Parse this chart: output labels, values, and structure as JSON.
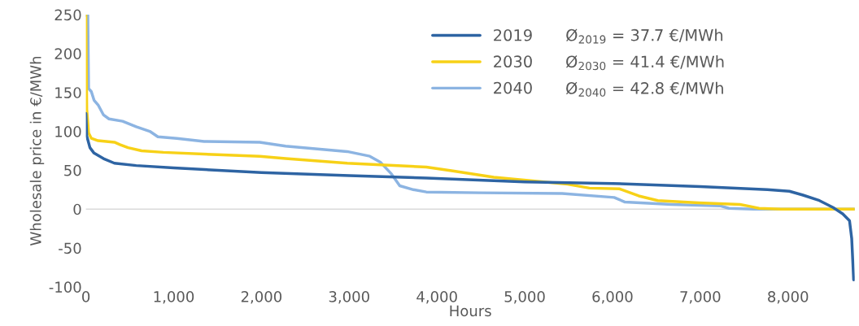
{
  "chart_data": {
    "type": "line",
    "xlabel": "Hours",
    "ylabel": "Wholesale price in €/MWh",
    "xlim": [
      0,
      8760
    ],
    "xticks": [
      {
        "value": 0,
        "label": "0"
      },
      {
        "value": 1000,
        "label": "1,000"
      },
      {
        "value": 2000,
        "label": "2,000"
      },
      {
        "value": 3000,
        "label": "3,000"
      },
      {
        "value": 4000,
        "label": "4,000"
      },
      {
        "value": 5000,
        "label": "5,000"
      },
      {
        "value": 6000,
        "label": "6,000"
      },
      {
        "value": 7000,
        "label": "7,000"
      },
      {
        "value": 8000,
        "label": "8,000"
      }
    ],
    "ylim": [
      -100,
      250
    ],
    "yticks": [
      -100,
      -50,
      0,
      50,
      100,
      150,
      200,
      250
    ],
    "grid": false,
    "legend": "top right",
    "marker": "none",
    "line_style": "solid",
    "ref_lines": [
      {
        "axis": "y",
        "value": 0,
        "color": "#d9d9d9"
      }
    ],
    "annotations": [
      "Ø$_{2019}$ = 37.7 €/MWh",
      "Ø$_{2030}$ = 41.4 €/MWh",
      "Ø$_{2040}$ = 42.8 €/MWh"
    ],
    "series": [
      {
        "name": "2019",
        "color": "#2e64a3",
        "x": [
          0,
          10,
          46,
          93,
          200,
          325,
          573,
          1000,
          2000,
          3000,
          3880,
          5000,
          6000,
          7000,
          7766,
          8016,
          8171,
          8358,
          8514,
          8623,
          8701,
          8726,
          8748
        ],
        "values": [
          123,
          94,
          79,
          72,
          65,
          59,
          56,
          53,
          47,
          43,
          40,
          35,
          33,
          29,
          25,
          23,
          18,
          11,
          2,
          -6,
          -15,
          -38,
          -91
        ]
      },
      {
        "name": "2030",
        "color": "#f7d117",
        "x": [
          0,
          10,
          31,
          62,
          139,
          325,
          387,
          480,
          635,
          882,
          1502,
          1981,
          2276,
          2978,
          3359,
          3879,
          4181,
          4648,
          5115,
          5489,
          5738,
          6081,
          6299,
          6517,
          6984,
          7452,
          7545,
          7670,
          7919,
          8760
        ],
        "values": [
          249,
          128,
          98,
          91,
          88,
          86,
          83,
          79,
          75,
          73,
          70,
          68,
          65,
          59,
          57,
          54,
          49,
          41,
          36,
          32,
          27,
          26,
          17,
          11,
          8,
          6,
          4,
          1,
          0,
          0
        ]
      },
      {
        "name": "2040",
        "color": "#8cb4e2",
        "x": [
          0,
          22,
          31,
          62,
          93,
          139,
          201,
          263,
          418,
          573,
          728,
          820,
          1037,
          1347,
          1981,
          2276,
          2978,
          3235,
          3359,
          3483,
          3576,
          3731,
          3879,
          4492,
          5427,
          6019,
          6143,
          6673,
          7234,
          7327,
          7607,
          8760
        ],
        "values": [
          249,
          249,
          155,
          151,
          140,
          134,
          121,
          116,
          113,
          106,
          100,
          93,
          91,
          87,
          86,
          81,
          74,
          68,
          60,
          45,
          30,
          25,
          22,
          21,
          20,
          15,
          9,
          6,
          4,
          1,
          0,
          0
        ]
      }
    ]
  }
}
